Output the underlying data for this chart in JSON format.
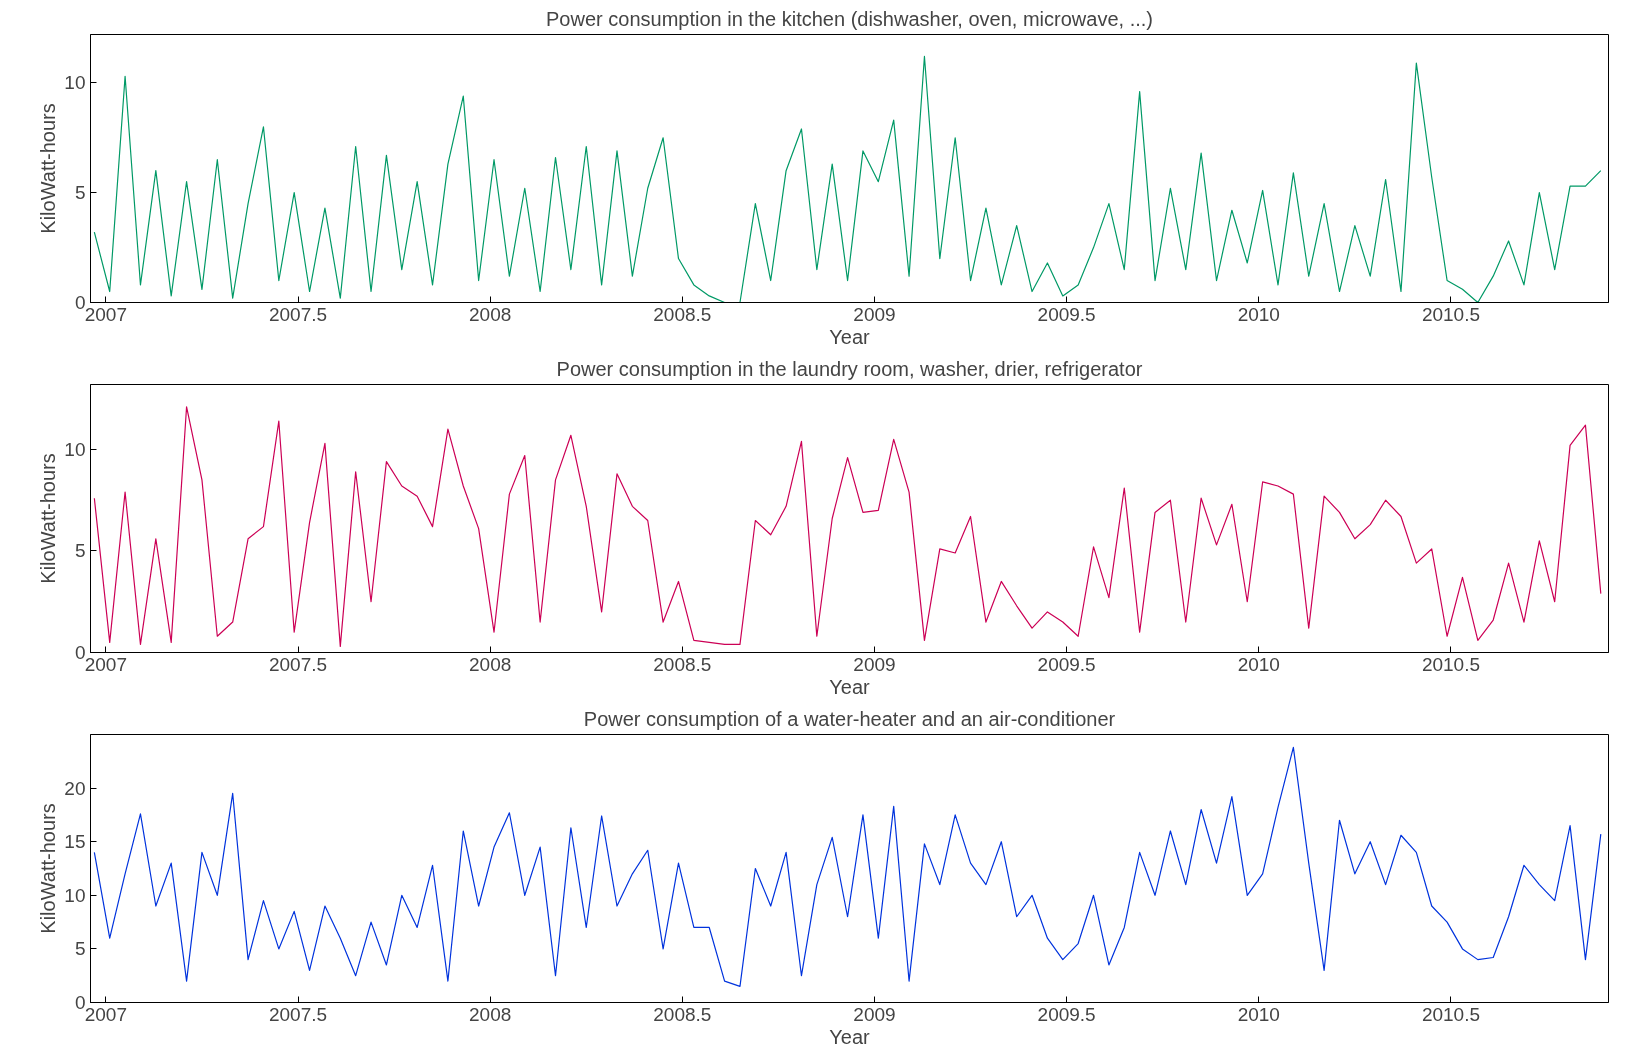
{
  "chart_data": [
    {
      "type": "line",
      "title": "Power consumption in the kitchen (dishwasher, oven, microwave, ...)",
      "xlabel": "Year",
      "ylabel": "KiloWatt-hours",
      "xlim": [
        2006.96,
        2010.91
      ],
      "ylim": [
        0,
        12.2
      ],
      "xticks": [
        2007,
        2007.5,
        2008,
        2008.5,
        2009,
        2009.5,
        2010,
        2010.5
      ],
      "yticks": [
        0,
        5,
        10
      ],
      "grid": false,
      "x": [
        2006.97,
        2007.01,
        2007.05,
        2007.09,
        2007.13,
        2007.17,
        2007.21,
        2007.25,
        2007.29,
        2007.33,
        2007.37,
        2007.41,
        2007.45,
        2007.49,
        2007.53,
        2007.57,
        2007.61,
        2007.65,
        2007.69,
        2007.73,
        2007.77,
        2007.81,
        2007.85,
        2007.89,
        2007.93,
        2007.97,
        2008.01,
        2008.05,
        2008.09,
        2008.13,
        2008.17,
        2008.21,
        2008.25,
        2008.29,
        2008.33,
        2008.37,
        2008.41,
        2008.45,
        2008.49,
        2008.53,
        2008.57,
        2008.61,
        2008.65,
        2008.69,
        2008.73,
        2008.77,
        2008.81,
        2008.85,
        2008.89,
        2008.93,
        2008.97,
        2009.01,
        2009.05,
        2009.09,
        2009.13,
        2009.17,
        2009.21,
        2009.25,
        2009.29,
        2009.33,
        2009.37,
        2009.41,
        2009.45,
        2009.49,
        2009.53,
        2009.57,
        2009.61,
        2009.65,
        2009.69,
        2009.73,
        2009.77,
        2009.81,
        2009.85,
        2009.89,
        2009.93,
        2009.97,
        2010.01,
        2010.05,
        2010.09,
        2010.13,
        2010.17,
        2010.21,
        2010.25,
        2010.29,
        2010.33,
        2010.37,
        2010.41,
        2010.45,
        2010.49,
        2010.53,
        2010.57,
        2010.61,
        2010.65,
        2010.69,
        2010.73,
        2010.77,
        2010.81,
        2010.85,
        2010.89
      ],
      "series": [
        {
          "color": "#009966",
          "values": [
            3.2,
            0.5,
            10.3,
            0.8,
            6,
            0.3,
            5.5,
            0.6,
            6.5,
            0.2,
            4.5,
            8,
            1,
            5,
            0.5,
            4.3,
            0.2,
            7.1,
            0.5,
            6.7,
            1.5,
            5.5,
            0.8,
            6.3,
            9.4,
            1,
            6.5,
            1.2,
            5.2,
            0.5,
            6.6,
            1.5,
            7.1,
            0.8,
            6.9,
            1.2,
            5.2,
            7.5,
            2,
            0.8,
            0.3,
            0,
            0,
            4.5,
            1,
            6,
            7.9,
            1.5,
            6.3,
            1,
            6.9,
            5.5,
            8.3,
            1.2,
            11.2,
            2,
            7.5,
            1,
            4.3,
            0.8,
            3.5,
            0.5,
            1.8,
            0.3,
            0.8,
            2.5,
            4.5,
            1.5,
            9.6,
            1,
            5.2,
            1.5,
            6.8,
            1,
            4.2,
            1.8,
            5.1,
            0.8,
            5.9,
            1.2,
            4.5,
            0.5,
            3.5,
            1.2,
            5.6,
            0.5,
            10.9,
            5.7,
            1,
            0.6,
            0,
            1.2,
            2.8,
            0.8,
            5,
            1.5,
            5.3,
            5.3,
            6
          ]
        }
      ]
    },
    {
      "type": "line",
      "title": "Power consumption in the laundry room, washer, drier, refrigerator",
      "xlabel": "Year",
      "ylabel": "KiloWatt-hours",
      "xlim": [
        2006.96,
        2010.91
      ],
      "ylim": [
        0,
        13.2
      ],
      "xticks": [
        2007,
        2007.5,
        2008,
        2008.5,
        2009,
        2009.5,
        2010,
        2010.5
      ],
      "yticks": [
        0,
        5,
        10
      ],
      "grid": false,
      "x": [
        2006.97,
        2007.01,
        2007.05,
        2007.09,
        2007.13,
        2007.17,
        2007.21,
        2007.25,
        2007.29,
        2007.33,
        2007.37,
        2007.41,
        2007.45,
        2007.49,
        2007.53,
        2007.57,
        2007.61,
        2007.65,
        2007.69,
        2007.73,
        2007.77,
        2007.81,
        2007.85,
        2007.89,
        2007.93,
        2007.97,
        2008.01,
        2008.05,
        2008.09,
        2008.13,
        2008.17,
        2008.21,
        2008.25,
        2008.29,
        2008.33,
        2008.37,
        2008.41,
        2008.45,
        2008.49,
        2008.53,
        2008.57,
        2008.61,
        2008.65,
        2008.69,
        2008.73,
        2008.77,
        2008.81,
        2008.85,
        2008.89,
        2008.93,
        2008.97,
        2009.01,
        2009.05,
        2009.09,
        2009.13,
        2009.17,
        2009.21,
        2009.25,
        2009.29,
        2009.33,
        2009.37,
        2009.41,
        2009.45,
        2009.49,
        2009.53,
        2009.57,
        2009.61,
        2009.65,
        2009.69,
        2009.73,
        2009.77,
        2009.81,
        2009.85,
        2009.89,
        2009.93,
        2009.97,
        2010.01,
        2010.05,
        2010.09,
        2010.13,
        2010.17,
        2010.21,
        2010.25,
        2010.29,
        2010.33,
        2010.37,
        2010.41,
        2010.45,
        2010.49,
        2010.53,
        2010.57,
        2010.61,
        2010.65,
        2010.69,
        2010.73,
        2010.77,
        2010.81,
        2010.85,
        2010.89
      ],
      "series": [
        {
          "color": "#cc0055",
          "values": [
            7.6,
            0.5,
            7.9,
            0.4,
            5.6,
            0.5,
            12.1,
            8.5,
            0.8,
            1.5,
            5.6,
            6.2,
            11.4,
            1,
            6.4,
            10.3,
            0.3,
            8.9,
            2.5,
            9.4,
            8.2,
            7.7,
            6.2,
            11,
            8.2,
            6.1,
            1,
            7.8,
            9.7,
            1.5,
            8.5,
            10.7,
            7.2,
            2,
            8.8,
            7.2,
            6.5,
            1.5,
            3.5,
            0.6,
            0.5,
            0.4,
            0.4,
            6.5,
            5.8,
            7.2,
            10.4,
            0.8,
            6.6,
            9.6,
            6.9,
            7,
            10.5,
            7.9,
            0.6,
            5.1,
            4.9,
            6.7,
            1.5,
            3.5,
            2.3,
            1.2,
            2,
            1.5,
            0.8,
            5.2,
            2.7,
            8.1,
            1,
            6.9,
            7.5,
            1.5,
            7.6,
            5.3,
            7.3,
            2.5,
            8.4,
            8.2,
            7.8,
            1.2,
            7.7,
            6.9,
            5.6,
            6.3,
            7.5,
            6.7,
            4.4,
            5.1,
            0.8,
            3.7,
            0.6,
            1.6,
            4.4,
            1.5,
            5.5,
            2.5,
            10.2,
            11.2,
            2.9
          ]
        }
      ]
    },
    {
      "type": "line",
      "title": "Power consumption of a water-heater and an air-conditioner",
      "xlabel": "Year",
      "ylabel": "KiloWatt-hours",
      "xlim": [
        2006.96,
        2010.91
      ],
      "ylim": [
        0,
        25
      ],
      "xticks": [
        2007,
        2007.5,
        2008,
        2008.5,
        2009,
        2009.5,
        2010,
        2010.5
      ],
      "yticks": [
        0,
        5,
        10,
        15,
        20
      ],
      "grid": false,
      "x": [
        2006.97,
        2007.01,
        2007.05,
        2007.09,
        2007.13,
        2007.17,
        2007.21,
        2007.25,
        2007.29,
        2007.33,
        2007.37,
        2007.41,
        2007.45,
        2007.49,
        2007.53,
        2007.57,
        2007.61,
        2007.65,
        2007.69,
        2007.73,
        2007.77,
        2007.81,
        2007.85,
        2007.89,
        2007.93,
        2007.97,
        2008.01,
        2008.05,
        2008.09,
        2008.13,
        2008.17,
        2008.21,
        2008.25,
        2008.29,
        2008.33,
        2008.37,
        2008.41,
        2008.45,
        2008.49,
        2008.53,
        2008.57,
        2008.61,
        2008.65,
        2008.69,
        2008.73,
        2008.77,
        2008.81,
        2008.85,
        2008.89,
        2008.93,
        2008.97,
        2009.01,
        2009.05,
        2009.09,
        2009.13,
        2009.17,
        2009.21,
        2009.25,
        2009.29,
        2009.33,
        2009.37,
        2009.41,
        2009.45,
        2009.49,
        2009.53,
        2009.57,
        2009.61,
        2009.65,
        2009.69,
        2009.73,
        2009.77,
        2009.81,
        2009.85,
        2009.89,
        2009.93,
        2009.97,
        2010.01,
        2010.05,
        2010.09,
        2010.13,
        2010.17,
        2010.21,
        2010.25,
        2010.29,
        2010.33,
        2010.37,
        2010.41,
        2010.45,
        2010.49,
        2010.53,
        2010.57,
        2010.61,
        2010.65,
        2010.69,
        2010.73,
        2010.77,
        2010.81,
        2010.85,
        2010.89
      ],
      "series": [
        {
          "color": "#0033dd",
          "values": [
            14,
            6,
            12,
            17.6,
            9,
            13,
            2,
            14,
            10,
            19.5,
            4,
            9.5,
            5,
            8.5,
            3,
            9,
            6,
            2.5,
            7.5,
            3.5,
            10,
            7,
            12.8,
            2,
            16,
            9,
            14.5,
            17.7,
            10,
            14.5,
            2.5,
            16.3,
            7,
            17.4,
            9,
            12,
            14.2,
            5,
            13,
            7,
            7,
            2,
            1.5,
            12.5,
            9,
            14,
            2.5,
            11,
            15.4,
            8,
            17.5,
            6,
            18.3,
            2,
            14.8,
            11,
            17.5,
            13,
            11,
            15,
            8,
            10,
            6,
            4,
            5.5,
            10,
            3.5,
            7,
            14,
            10,
            16,
            11,
            18,
            13,
            19.2,
            10,
            12,
            18.2,
            23.8,
            13,
            3,
            17,
            12,
            15,
            11,
            15.6,
            14,
            9,
            7.5,
            5,
            4,
            4.2,
            8,
            12.8,
            11,
            9.5,
            16.5,
            4,
            15.7
          ]
        }
      ]
    }
  ]
}
